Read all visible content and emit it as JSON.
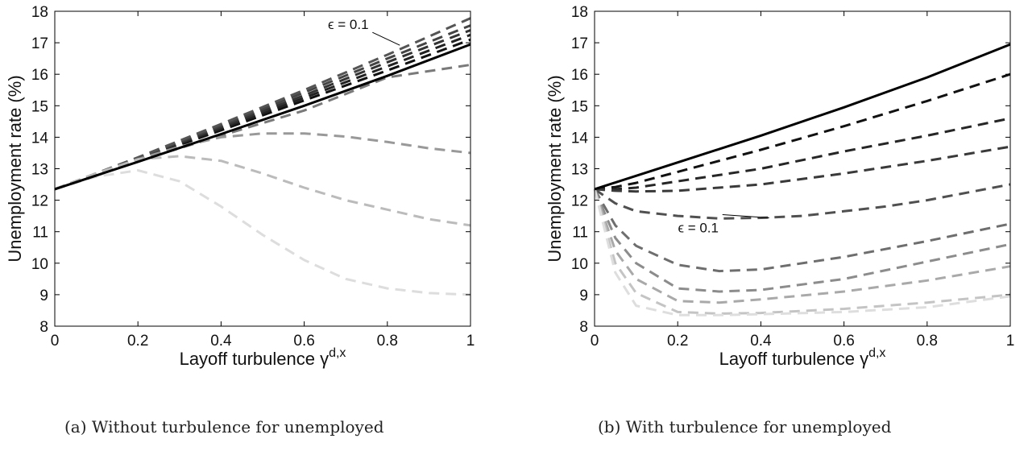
{
  "captions": {
    "a": "(a) Without turbulence for unemployed",
    "b": "(b) With turbulence for unemployed"
  },
  "chart_data": [
    {
      "type": "line",
      "xlabel": "Layoff turbulence γ",
      "xlabel_superscript": "d,x",
      "ylabel": "Unemployment rate (%)",
      "xlim": [
        0,
        1
      ],
      "ylim": [
        8,
        18
      ],
      "xticks": [
        "0",
        "0.2",
        "0.4",
        "0.6",
        "0.8",
        "1"
      ],
      "yticks": [
        "8",
        "9",
        "10",
        "11",
        "12",
        "13",
        "14",
        "15",
        "16",
        "17",
        "18"
      ],
      "grid": false,
      "annotation": {
        "text": "ϵ = 0.1",
        "at_x": 0.83,
        "at_y": 16.92
      },
      "series": [
        {
          "style": "solid",
          "color": "#000000",
          "x": [
            0,
            0.2,
            0.4,
            0.6,
            0.8,
            1
          ],
          "y": [
            12.35,
            13.22,
            14.1,
            15.0,
            15.95,
            16.95
          ]
        },
        {
          "style": "dashed",
          "color": "#111111",
          "x": [
            0,
            0.2,
            0.4,
            0.6,
            0.8,
            1
          ],
          "y": [
            12.35,
            13.28,
            14.22,
            15.17,
            16.12,
            17.1
          ]
        },
        {
          "style": "dashed",
          "color": "#222222",
          "x": [
            0,
            0.2,
            0.4,
            0.6,
            0.8,
            1
          ],
          "y": [
            12.35,
            13.3,
            14.27,
            15.25,
            16.25,
            17.25
          ]
        },
        {
          "style": "dashed",
          "color": "#333333",
          "x": [
            0,
            0.2,
            0.4,
            0.6,
            0.8,
            1
          ],
          "y": [
            12.35,
            13.32,
            14.32,
            15.33,
            16.38,
            17.4
          ]
        },
        {
          "style": "dashed",
          "color": "#444444",
          "x": [
            0,
            0.2,
            0.4,
            0.6,
            0.8,
            1
          ],
          "y": [
            12.35,
            13.34,
            14.37,
            15.42,
            16.5,
            17.55
          ]
        },
        {
          "style": "dashed",
          "color": "#555555",
          "x": [
            0,
            0.2,
            0.4,
            0.6,
            0.8,
            1
          ],
          "y": [
            12.35,
            13.36,
            14.42,
            15.5,
            16.62,
            17.78
          ]
        },
        {
          "style": "dashed",
          "color": "#7a7a7a",
          "x": [
            0,
            0.2,
            0.4,
            0.6,
            0.8,
            1
          ],
          "y": [
            12.35,
            13.25,
            14.05,
            14.85,
            15.9,
            16.3
          ]
        },
        {
          "style": "dashed",
          "color": "#999999",
          "x": [
            0,
            0.1,
            0.2,
            0.3,
            0.4,
            0.5,
            0.6,
            0.7,
            0.8,
            0.9,
            1
          ],
          "y": [
            12.35,
            12.85,
            13.3,
            13.7,
            14.0,
            14.12,
            14.12,
            14.02,
            13.85,
            13.65,
            13.5
          ]
        },
        {
          "style": "dashed",
          "color": "#bbbbbb",
          "x": [
            0,
            0.1,
            0.2,
            0.3,
            0.4,
            0.5,
            0.6,
            0.7,
            0.8,
            0.9,
            1
          ],
          "y": [
            12.35,
            12.85,
            13.3,
            13.4,
            13.25,
            12.85,
            12.4,
            12.0,
            11.7,
            11.4,
            11.2
          ]
        },
        {
          "style": "dashed",
          "color": "#dddddd",
          "x": [
            0,
            0.1,
            0.2,
            0.3,
            0.4,
            0.5,
            0.6,
            0.7,
            0.8,
            0.9,
            1
          ],
          "y": [
            12.35,
            12.75,
            12.95,
            12.6,
            11.8,
            10.9,
            10.1,
            9.5,
            9.2,
            9.05,
            9.0
          ]
        }
      ]
    },
    {
      "type": "line",
      "xlabel": "Layoff turbulence γ",
      "xlabel_superscript": "d,x",
      "ylabel": "Unemployment rate (%)",
      "xlim": [
        0,
        1
      ],
      "ylim": [
        8,
        18
      ],
      "xticks": [
        "0",
        "0.2",
        "0.4",
        "0.6",
        "0.8",
        "1"
      ],
      "yticks": [
        "8",
        "9",
        "10",
        "11",
        "12",
        "13",
        "14",
        "15",
        "16",
        "17",
        "18"
      ],
      "grid": false,
      "annotation": {
        "text": "ϵ = 0.1",
        "at_x": 0.42,
        "at_y": 11.44
      },
      "series": [
        {
          "style": "solid",
          "color": "#000000",
          "x": [
            0,
            0.2,
            0.4,
            0.6,
            0.8,
            1
          ],
          "y": [
            12.35,
            13.2,
            14.05,
            14.95,
            15.9,
            16.95
          ]
        },
        {
          "style": "dashed",
          "color": "#111111",
          "x": [
            0,
            0.05,
            0.1,
            0.2,
            0.4,
            0.6,
            0.8,
            1
          ],
          "y": [
            12.35,
            12.42,
            12.55,
            12.9,
            13.6,
            14.35,
            15.15,
            16.0
          ]
        },
        {
          "style": "dashed",
          "color": "#262626",
          "x": [
            0,
            0.05,
            0.1,
            0.2,
            0.4,
            0.6,
            0.8,
            1
          ],
          "y": [
            12.35,
            12.35,
            12.4,
            12.6,
            13.0,
            13.55,
            14.05,
            14.6
          ]
        },
        {
          "style": "dashed",
          "color": "#3a3a3a",
          "x": [
            0,
            0.05,
            0.1,
            0.2,
            0.4,
            0.6,
            0.8,
            1
          ],
          "y": [
            12.35,
            12.3,
            12.28,
            12.3,
            12.5,
            12.85,
            13.25,
            13.7
          ]
        },
        {
          "style": "dashed",
          "color": "#505050",
          "x": [
            0,
            0.05,
            0.1,
            0.2,
            0.3,
            0.4,
            0.5,
            0.6,
            0.7,
            0.8,
            0.9,
            1
          ],
          "y": [
            12.35,
            11.9,
            11.65,
            11.5,
            11.42,
            11.44,
            11.5,
            11.65,
            11.8,
            12.0,
            12.25,
            12.5
          ]
        },
        {
          "style": "dashed",
          "color": "#6e6e6e",
          "x": [
            0,
            0.05,
            0.1,
            0.2,
            0.3,
            0.4,
            0.6,
            0.8,
            1
          ],
          "y": [
            12.35,
            11.2,
            10.55,
            9.95,
            9.75,
            9.8,
            10.2,
            10.7,
            11.25
          ]
        },
        {
          "style": "dashed",
          "color": "#8c8c8c",
          "x": [
            0,
            0.05,
            0.1,
            0.2,
            0.3,
            0.4,
            0.6,
            0.8,
            1
          ],
          "y": [
            12.35,
            10.8,
            10.0,
            9.2,
            9.1,
            9.15,
            9.5,
            10.05,
            10.6
          ]
        },
        {
          "style": "dashed",
          "color": "#a9a9a9",
          "x": [
            0,
            0.05,
            0.1,
            0.2,
            0.3,
            0.4,
            0.6,
            0.8,
            1
          ],
          "y": [
            12.35,
            10.4,
            9.5,
            8.8,
            8.75,
            8.85,
            9.1,
            9.45,
            9.9
          ]
        },
        {
          "style": "dashed",
          "color": "#c4c4c4",
          "x": [
            0,
            0.05,
            0.1,
            0.2,
            0.3,
            0.4,
            0.6,
            0.8,
            1
          ],
          "y": [
            12.35,
            10.0,
            9.05,
            8.45,
            8.4,
            8.42,
            8.55,
            8.75,
            9.0
          ]
        },
        {
          "style": "dashed",
          "color": "#dedede",
          "x": [
            0,
            0.05,
            0.1,
            0.2,
            0.3,
            0.4,
            0.6,
            0.8,
            1
          ],
          "y": [
            12.35,
            9.7,
            8.65,
            8.35,
            8.35,
            8.38,
            8.45,
            8.6,
            8.95
          ]
        }
      ]
    }
  ]
}
